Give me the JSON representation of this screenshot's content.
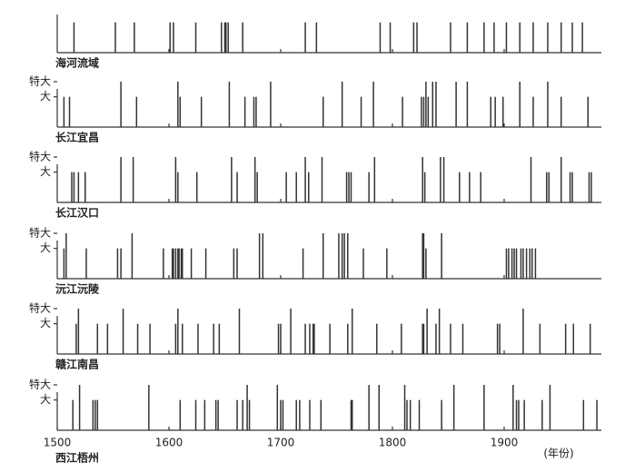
{
  "chart_data": [
    {
      "type": "spike",
      "title": "海河流域",
      "xlim": [
        1500,
        1987
      ],
      "ylim": [
        0,
        3
      ],
      "yticks": [],
      "xticks": [
        1600,
        1700,
        1800,
        1900
      ],
      "show_xtick_labels": false,
      "color": "#333333",
      "x": [
        1515,
        1552,
        1569,
        1601,
        1604,
        1624,
        1647,
        1650,
        1651,
        1653,
        1666,
        1722,
        1732,
        1789,
        1798,
        1819,
        1822,
        1852,
        1867,
        1882,
        1891,
        1902,
        1914,
        1926,
        1939,
        1951,
        1961,
        1970
      ],
      "values": [
        2,
        2,
        2,
        2,
        2,
        2,
        2,
        2,
        2,
        2,
        2,
        2,
        2,
        2,
        2,
        2,
        2,
        2,
        2,
        2,
        2,
        2,
        2,
        2,
        2,
        2,
        2,
        2
      ]
    },
    {
      "type": "spike",
      "title": "长江宜昌",
      "xlim": [
        1500,
        1987
      ],
      "ylim": [
        0,
        3
      ],
      "yticks": [
        {
          "value": 2,
          "label": "大"
        },
        {
          "value": 3,
          "label": "特大"
        }
      ],
      "xticks": [
        1600,
        1700,
        1800,
        1900
      ],
      "show_xtick_labels": false,
      "color": "#333333",
      "x": [
        1506,
        1511,
        1557,
        1571,
        1608,
        1610,
        1629,
        1654,
        1668,
        1676,
        1678,
        1691,
        1738,
        1755,
        1772,
        1783,
        1809,
        1826,
        1828,
        1830,
        1832,
        1836,
        1839,
        1857,
        1867,
        1888,
        1892,
        1899,
        1914,
        1926,
        1939,
        1951,
        1975
      ],
      "values": [
        2,
        2,
        3,
        2,
        3,
        2,
        2,
        3,
        2,
        2,
        2,
        3,
        2,
        3,
        2,
        3,
        2,
        2,
        2,
        3,
        2,
        3,
        3,
        3,
        3,
        2,
        2,
        2,
        3,
        2,
        3,
        2,
        2
      ]
    },
    {
      "type": "spike",
      "title": "长江汉口",
      "xlim": [
        1500,
        1987
      ],
      "ylim": [
        0,
        3
      ],
      "yticks": [
        {
          "value": 2,
          "label": "大"
        },
        {
          "value": 3,
          "label": "特大"
        }
      ],
      "xticks": [
        1600,
        1700,
        1800,
        1900
      ],
      "show_xtick_labels": false,
      "color": "#333333",
      "x": [
        1513,
        1515,
        1519,
        1525,
        1557,
        1568,
        1606,
        1608,
        1625,
        1656,
        1661,
        1677,
        1679,
        1705,
        1714,
        1722,
        1725,
        1737,
        1759,
        1761,
        1763,
        1779,
        1784,
        1827,
        1829,
        1843,
        1846,
        1860,
        1869,
        1879,
        1924,
        1938,
        1940,
        1951,
        1959,
        1961,
        1976,
        1978
      ],
      "values": [
        2,
        2,
        2,
        2,
        3,
        3,
        3,
        2,
        2,
        3,
        2,
        3,
        2,
        2,
        2,
        3,
        2,
        3,
        2,
        2,
        2,
        2,
        3,
        3,
        2,
        3,
        3,
        2,
        2,
        2,
        3,
        2,
        2,
        3,
        2,
        2,
        2,
        2
      ]
    },
    {
      "type": "spike",
      "title": "沅江沅陵",
      "xlim": [
        1500,
        1987
      ],
      "ylim": [
        0,
        3
      ],
      "yticks": [
        {
          "value": 2,
          "label": "大"
        },
        {
          "value": 3,
          "label": "特大"
        }
      ],
      "xticks": [
        1600,
        1700,
        1800,
        1900
      ],
      "show_xtick_labels": false,
      "color": "#333333",
      "x": [
        1506,
        1508,
        1526,
        1554,
        1557,
        1567,
        1595,
        1603,
        1604,
        1606,
        1608,
        1609,
        1611,
        1612,
        1620,
        1633,
        1658,
        1661,
        1681,
        1684,
        1720,
        1738,
        1752,
        1755,
        1757,
        1760,
        1774,
        1795,
        1827,
        1828,
        1830,
        1844,
        1902,
        1904,
        1907,
        1909,
        1911,
        1915,
        1917,
        1920,
        1923,
        1925,
        1928
      ],
      "values": [
        2,
        3,
        2,
        2,
        2,
        3,
        2,
        2,
        2,
        2,
        2,
        2,
        2,
        2,
        2,
        2,
        2,
        2,
        3,
        3,
        2,
        3,
        3,
        3,
        3,
        3,
        2,
        2,
        3,
        3,
        2,
        3,
        2,
        2,
        2,
        2,
        2,
        2,
        2,
        2,
        2,
        2,
        2
      ]
    },
    {
      "type": "spike",
      "title": "赣江南昌",
      "xlim": [
        1500,
        1987
      ],
      "ylim": [
        0,
        3
      ],
      "yticks": [
        {
          "value": 2,
          "label": "大"
        },
        {
          "value": 3,
          "label": "特大"
        }
      ],
      "xticks": [
        1600,
        1700,
        1800,
        1900
      ],
      "show_xtick_labels": false,
      "color": "#333333",
      "x": [
        1517,
        1519,
        1536,
        1545,
        1559,
        1572,
        1583,
        1606,
        1608,
        1612,
        1626,
        1640,
        1645,
        1663,
        1698,
        1700,
        1709,
        1722,
        1726,
        1729,
        1730,
        1744,
        1760,
        1764,
        1786,
        1808,
        1827,
        1828,
        1831,
        1839,
        1842,
        1852,
        1863,
        1894,
        1896,
        1917,
        1932,
        1955,
        1962,
        1977
      ],
      "values": [
        2,
        3,
        2,
        2,
        3,
        2,
        2,
        2,
        3,
        2,
        2,
        2,
        2,
        3,
        2,
        2,
        3,
        2,
        2,
        2,
        2,
        2,
        2,
        3,
        2,
        2,
        2,
        2,
        3,
        2,
        3,
        2,
        2,
        2,
        2,
        3,
        2,
        2,
        2,
        2
      ]
    },
    {
      "type": "spike",
      "title": "西江梧州",
      "xlabel": "(年份)",
      "xlim": [
        1500,
        1987
      ],
      "ylim": [
        0,
        3
      ],
      "yticks": [
        {
          "value": 2,
          "label": "大"
        },
        {
          "value": 3,
          "label": "特大"
        }
      ],
      "xticks": [
        1500,
        1600,
        1700,
        1800,
        1900
      ],
      "show_xtick_labels": true,
      "color": "#333333",
      "x": [
        1514,
        1520,
        1532,
        1534,
        1536,
        1582,
        1610,
        1624,
        1632,
        1642,
        1644,
        1661,
        1666,
        1670,
        1672,
        1697,
        1700,
        1702,
        1714,
        1717,
        1726,
        1736,
        1763,
        1764,
        1779,
        1788,
        1811,
        1813,
        1816,
        1824,
        1844,
        1855,
        1882,
        1908,
        1911,
        1913,
        1918,
        1934,
        1941,
        1971,
        1983
      ],
      "values": [
        2,
        3,
        2,
        2,
        2,
        3,
        2,
        2,
        2,
        2,
        2,
        2,
        2,
        3,
        2,
        3,
        2,
        2,
        2,
        2,
        2,
        2,
        2,
        2,
        3,
        3,
        3,
        2,
        2,
        2,
        2,
        3,
        3,
        3,
        2,
        2,
        2,
        2,
        3,
        2,
        2
      ]
    }
  ]
}
